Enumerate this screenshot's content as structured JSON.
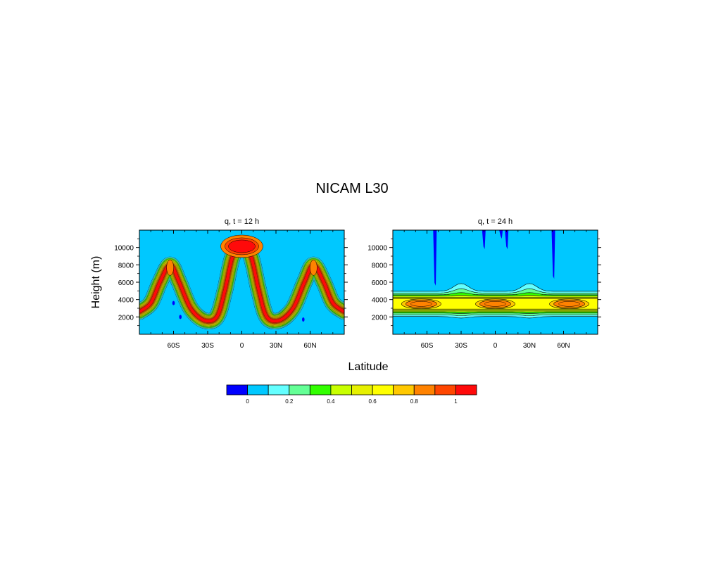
{
  "figure": {
    "title": "NICAM L30",
    "xlabel": "Latitude",
    "ylabel": "Height (m)"
  },
  "colorbar": {
    "colors": [
      "#0000ff",
      "#00c8ff",
      "#64ffff",
      "#64ff96",
      "#32ff00",
      "#c8ff00",
      "#e6f000",
      "#ffff00",
      "#ffc800",
      "#ff8200",
      "#ff4600",
      "#ff0a0a"
    ],
    "labels": [
      {
        "text": "0",
        "value": 0
      },
      {
        "text": "0.2",
        "value": 0.2
      },
      {
        "text": "0.4",
        "value": 0.4
      },
      {
        "text": "0.6",
        "value": 0.6
      },
      {
        "text": "0.8",
        "value": 0.8
      },
      {
        "text": "1",
        "value": 1
      }
    ]
  },
  "chart_data": [
    {
      "type": "heatmap",
      "title": "q, t = 12 h",
      "xlabel": "Latitude",
      "ylabel": "Height (m)",
      "xlim": [
        -90,
        90
      ],
      "ylim": [
        0,
        12000
      ],
      "xticklabels": [
        {
          "text": "60S",
          "value": -60
        },
        {
          "text": "30S",
          "value": -30
        },
        {
          "text": "0",
          "value": 0
        },
        {
          "text": "30N",
          "value": 30
        },
        {
          "text": "60N",
          "value": 60
        }
      ],
      "yticklabels": [
        {
          "text": "2000",
          "value": 2000
        },
        {
          "text": "4000",
          "value": 4000
        },
        {
          "text": "6000",
          "value": 6000
        },
        {
          "text": "8000",
          "value": 8000
        },
        {
          "text": "10000",
          "value": 10000
        }
      ],
      "background_color": "#00c8ff",
      "description_of_field": "tracer band following a three-hump curve",
      "band_centerline": [
        {
          "lat": -90,
          "z": 2600
        },
        {
          "lat": -80,
          "z": 3600
        },
        {
          "lat": -72,
          "z": 6000
        },
        {
          "lat": -63,
          "z": 8000
        },
        {
          "lat": -55,
          "z": 6000
        },
        {
          "lat": -45,
          "z": 3000
        },
        {
          "lat": -33,
          "z": 1600
        },
        {
          "lat": -22,
          "z": 2000
        },
        {
          "lat": -15,
          "z": 5000
        },
        {
          "lat": -8,
          "z": 9000
        },
        {
          "lat": 0,
          "z": 10300
        },
        {
          "lat": 8,
          "z": 9000
        },
        {
          "lat": 15,
          "z": 5000
        },
        {
          "lat": 22,
          "z": 2000
        },
        {
          "lat": 33,
          "z": 1600
        },
        {
          "lat": 45,
          "z": 3000
        },
        {
          "lat": 55,
          "z": 6000
        },
        {
          "lat": 63,
          "z": 8000
        },
        {
          "lat": 72,
          "z": 6000
        },
        {
          "lat": 80,
          "z": 3600
        },
        {
          "lat": 90,
          "z": 2600
        }
      ],
      "band_max": 1.0,
      "negative_spots": [
        {
          "lat": -60,
          "z": 3600
        },
        {
          "lat": -54,
          "z": 2000
        },
        {
          "lat": 54,
          "z": 1700
        }
      ]
    },
    {
      "type": "heatmap",
      "title": "q, t = 24 h",
      "xlabel": "Latitude",
      "ylabel": "Height (m)",
      "xlim": [
        -90,
        90
      ],
      "ylim": [
        0,
        12000
      ],
      "xticklabels": [
        {
          "text": "60S",
          "value": -60
        },
        {
          "text": "30S",
          "value": -30
        },
        {
          "text": "0",
          "value": 0
        },
        {
          "text": "30N",
          "value": 30
        },
        {
          "text": "60N",
          "value": 60
        }
      ],
      "yticklabels": [
        {
          "text": "2000",
          "value": 2000
        },
        {
          "text": "4000",
          "value": 4000
        },
        {
          "text": "6000",
          "value": 6000
        },
        {
          "text": "8000",
          "value": 8000
        },
        {
          "text": "10000",
          "value": 10000
        }
      ],
      "background_color": "#00c8ff",
      "description_of_field": "horizontal tracer layer centered near 3500 m",
      "layer_center_z": 3500,
      "layer_bumps": [
        {
          "lat": -30,
          "z": 5000
        },
        {
          "lat": 30,
          "z": 5000
        }
      ],
      "core_maxima": [
        {
          "lat": -65,
          "z": 3500,
          "value": 0.9
        },
        {
          "lat": 0,
          "z": 3500,
          "value": 0.85
        },
        {
          "lat": 65,
          "z": 3500,
          "value": 0.9
        }
      ],
      "negative_columns": [
        {
          "lat": -53,
          "z_top": 11800,
          "z_bottom": 5600
        },
        {
          "lat": -10,
          "z_top": 11800,
          "z_bottom": 9800
        },
        {
          "lat": 5,
          "z_top": 11800,
          "z_bottom": 11000
        },
        {
          "lat": 10,
          "z_top": 11800,
          "z_bottom": 9800
        },
        {
          "lat": 51,
          "z_top": 11800,
          "z_bottom": 6400
        }
      ]
    }
  ]
}
